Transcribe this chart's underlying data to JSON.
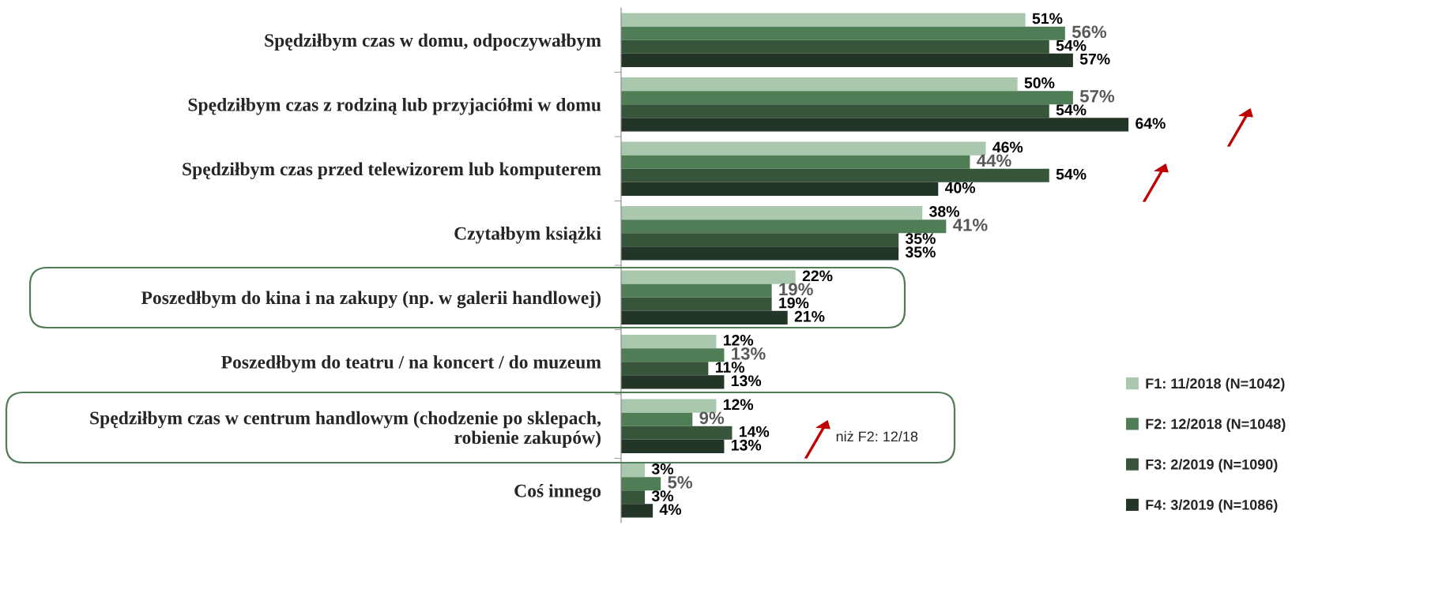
{
  "chart_data": {
    "type": "bar",
    "orientation": "horizontal",
    "categories": [
      "Spędziłbym czas w domu, odpoczywałbym",
      "Spędziłbym czas z rodziną lub przyjaciółmi w domu",
      "Spędziłbym czas przed telewizorem lub komputerem",
      "Czytałbym książki",
      "Poszedłbym do kina i na zakupy (np. w galerii handlowej)",
      "Poszedłbym do teatru / na koncert / do muzeum",
      "Spędziłbym czas w centrum handlowym (chodzenie po sklepach,\nrobienie zakupów)",
      "Coś innego"
    ],
    "series": [
      {
        "name": "F1: 11/2018 (N=1042)",
        "color": "#a9c8ae",
        "values": [
          51,
          50,
          46,
          38,
          22,
          12,
          12,
          3
        ],
        "value_labels": [
          "51%",
          "50%",
          "46%",
          "38%",
          "22%",
          "12%",
          "12%",
          "3%"
        ]
      },
      {
        "name": "F2: 12/2018 (N=1048)",
        "color": "#4f7e56",
        "values": [
          56,
          57,
          44,
          41,
          19,
          13,
          9,
          5
        ],
        "value_labels": [
          "56%",
          "57%",
          "44%",
          "41%",
          "19%",
          "13%",
          "9%",
          "5%"
        ]
      },
      {
        "name": "F3: 2/2019 (N=1090)",
        "color": "#37553a",
        "values": [
          54,
          54,
          54,
          35,
          19,
          11,
          14,
          3
        ],
        "value_labels": [
          "54%",
          "54%",
          "54%",
          "35%",
          "19%",
          "11%",
          "14%",
          "3%"
        ]
      },
      {
        "name": "F4: 3/2019 (N=1086)",
        "color": "#233526",
        "values": [
          57,
          64,
          40,
          35,
          21,
          13,
          13,
          4
        ],
        "value_labels": [
          "57%",
          "64%",
          "40%",
          "35%",
          "21%",
          "13%",
          "13%",
          "4%"
        ]
      }
    ],
    "legend": "bottom right",
    "grid": false,
    "annotations": [
      "niż F2: 12/18"
    ]
  }
}
